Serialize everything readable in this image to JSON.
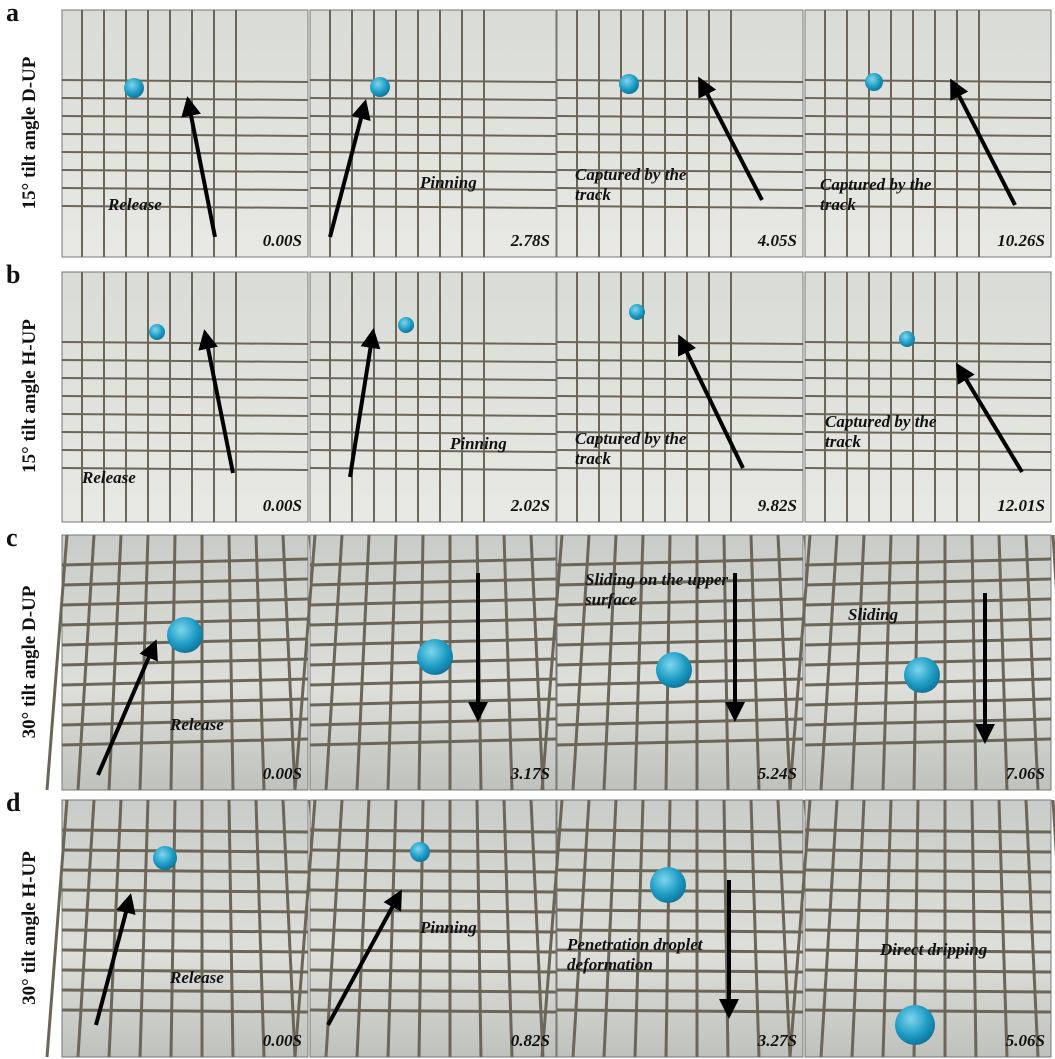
{
  "rows": [
    {
      "letter": "a",
      "label": "15° tilt angle D-UP",
      "panels": [
        {
          "caption": "Release",
          "time": "0.00S"
        },
        {
          "caption": "Pinning",
          "time": "2.78S"
        },
        {
          "caption": "Captured by the track",
          "time": "4.05S"
        },
        {
          "caption": "Captured by the track",
          "time": "10.26S"
        }
      ]
    },
    {
      "letter": "b",
      "label": "15° tilt angle H-UP",
      "panels": [
        {
          "caption": "Release",
          "time": "0.00S"
        },
        {
          "caption": "Pinning",
          "time": "2.02S"
        },
        {
          "caption": "Captured by the track",
          "time": "9.82S"
        },
        {
          "caption": "Captured by the track",
          "time": "12.01S"
        }
      ]
    },
    {
      "letter": "c",
      "label": "30° tilt angle D-UP",
      "panels": [
        {
          "caption": "Release",
          "time": "0.00S"
        },
        {
          "time": "3.17S"
        },
        {
          "caption": "Sliding on the upper surface",
          "time": "5.24S"
        },
        {
          "caption": "Sliding",
          "time": "7.06S"
        }
      ]
    },
    {
      "letter": "d",
      "label": "30° tilt angle H-UP",
      "panels": [
        {
          "caption": "Release",
          "time": "0.00S"
        },
        {
          "caption": "Pinning",
          "time": "0.82S"
        },
        {
          "caption": "Penetration droplet deformation",
          "time": "3.27S"
        },
        {
          "caption": "Direct dripping",
          "time": "5.06S"
        }
      ]
    }
  ]
}
